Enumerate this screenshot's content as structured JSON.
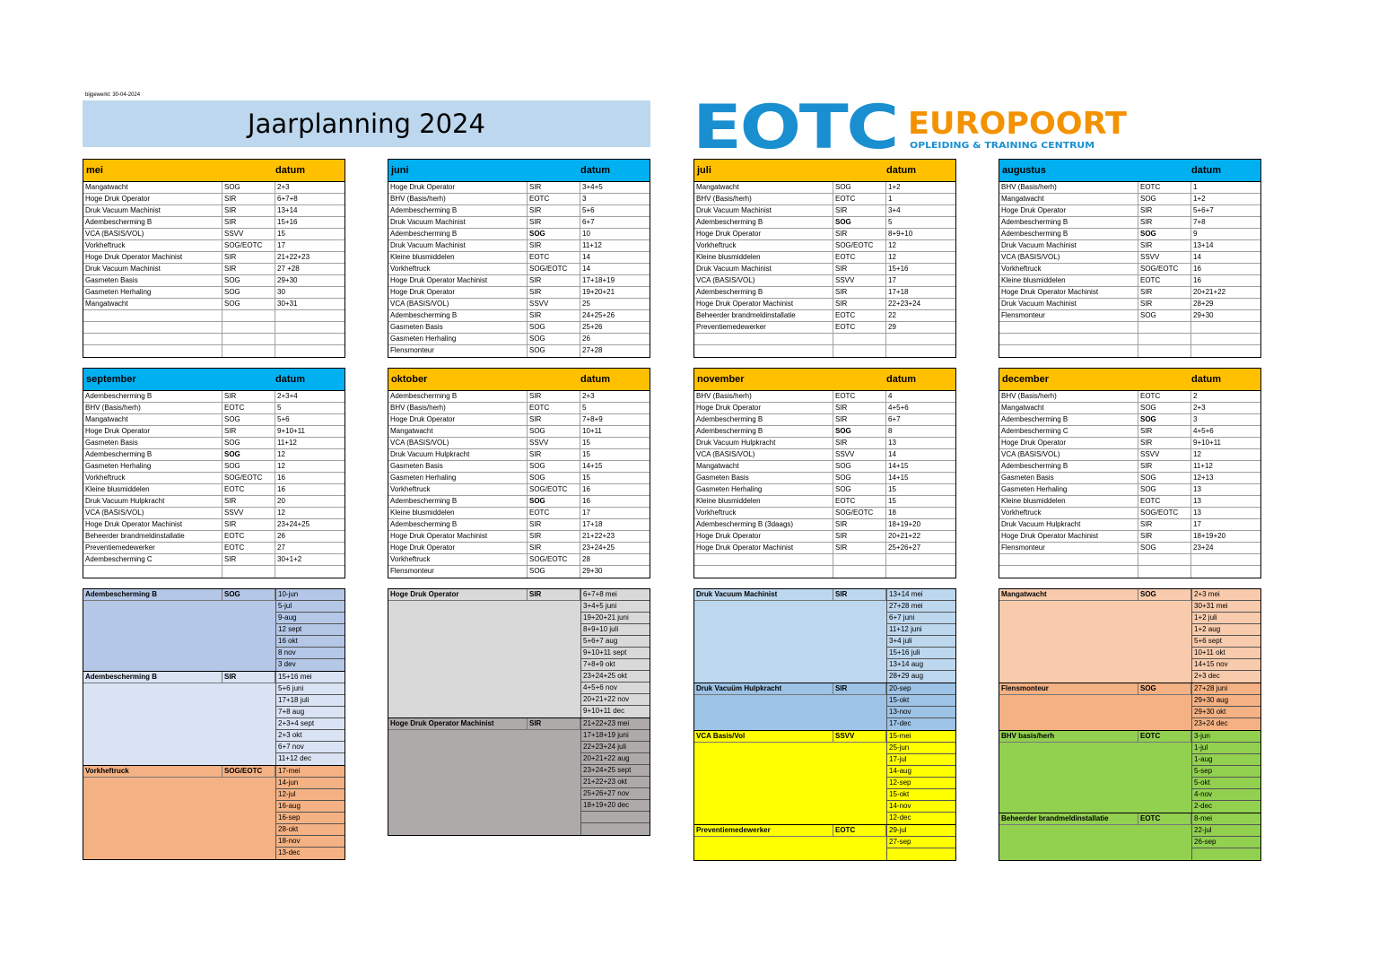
{
  "updated": "bijgewerkt: 30-04-2024",
  "title": "Jaarplanning 2024",
  "logo": {
    "mark": "EOTC",
    "name": "EUROPOORT",
    "tagline": "OPLEIDING & TRAINING CENTRUM",
    "colors": {
      "blue": "#1a8fd0",
      "orange": "#f39200"
    }
  },
  "datum_label": "datum",
  "months": [
    {
      "name": "mei",
      "rows": [
        [
          "Mangatwacht",
          "SOG",
          "2+3"
        ],
        [
          "Hoge Druk Operator",
          "SIR",
          "6+7+8"
        ],
        [
          "Druk Vacuum Machinist",
          "SIR",
          "13+14"
        ],
        [
          "Adembescherming B",
          "SIR",
          "15+16"
        ],
        [
          "VCA (BASIS/VOL)",
          "SSVV",
          "15"
        ],
        [
          "Vorkheftruck",
          "SOG/EOTC",
          "17"
        ],
        [
          "Hoge Druk Operator Machinist",
          "SIR",
          "21+22+23"
        ],
        [
          "Druk Vacuum Machinist",
          "SIR",
          "27 +28"
        ],
        [
          "Gasmeten Basis",
          "SOG",
          "29+30"
        ],
        [
          "Gasmeten Herhaling",
          "SOG",
          "30"
        ],
        [
          "Mangatwacht",
          "SOG",
          "30+31"
        ],
        [
          "",
          "",
          ""
        ],
        [
          "",
          "",
          ""
        ],
        [
          "",
          "",
          ""
        ],
        [
          "",
          "",
          ""
        ]
      ]
    },
    {
      "name": "juni",
      "rows": [
        [
          "Hoge Druk Operator",
          "SIR",
          "3+4+5"
        ],
        [
          "BHV (Basis/herh)",
          "EOTC",
          "3"
        ],
        [
          "Adembescherming B",
          "SIR",
          "5+6"
        ],
        [
          "Druk Vacuum Machinist",
          "SIR",
          "6+7"
        ],
        [
          "Adembescherming B",
          "SOG",
          "10"
        ],
        [
          "Druk Vacuum Machinist",
          "SIR",
          "11+12"
        ],
        [
          "Kleine blusmiddelen",
          "EOTC",
          "14"
        ],
        [
          "Vorkheftruck",
          "SOG/EOTC",
          "14"
        ],
        [
          "Hoge Druk Operator Machinist",
          "SIR",
          "17+18+19"
        ],
        [
          "Hoge Druk Operator",
          "SIR",
          "19+20+21"
        ],
        [
          "VCA (BASIS/VOL)",
          "SSVV",
          "25"
        ],
        [
          "Adembescherming B",
          "SIR",
          "24+25+26"
        ],
        [
          "Gasmeten Basis",
          "SOG",
          "25+26"
        ],
        [
          "Gasmeten Herhaling",
          "SOG",
          "26"
        ],
        [
          "Flensmonteur",
          "SOG",
          "27+28"
        ]
      ]
    },
    {
      "name": "juli",
      "rows": [
        [
          "Mangatwacht",
          "SOG",
          "1+2"
        ],
        [
          "BHV (Basis/herh)",
          "EOTC",
          "1"
        ],
        [
          "Druk Vacuum Machinist",
          "SIR",
          "3+4"
        ],
        [
          "Adembescherming B",
          "SOG",
          "5"
        ],
        [
          "Hoge Druk Operator",
          "SIR",
          "8+9+10"
        ],
        [
          "Vorkheftruck",
          "SOG/EOTC",
          "12"
        ],
        [
          "Kleine blusmiddelen",
          "EOTC",
          "12"
        ],
        [
          "Druk Vacuum Machinist",
          "SIR",
          "15+16"
        ],
        [
          "VCA (BASIS/VOL)",
          "SSVV",
          "17"
        ],
        [
          "Adembescherming B",
          "SIR",
          "17+18"
        ],
        [
          "Hoge Druk Operator Machinist",
          "SIR",
          "22+23+24"
        ],
        [
          "Beheerder brandmeldinstallatie",
          "EOTC",
          "22"
        ],
        [
          "Preventiemedewerker",
          "EOTC",
          "29"
        ],
        [
          "",
          "",
          ""
        ],
        [
          "",
          "",
          ""
        ]
      ]
    },
    {
      "name": "augustus",
      "rows": [
        [
          "BHV (Basis/herh)",
          "EOTC",
          "1"
        ],
        [
          "Mangatwacht",
          "SOG",
          "1+2"
        ],
        [
          "Hoge Druk Operator",
          "SIR",
          "5+6+7"
        ],
        [
          "Adembescherming B",
          "SIR",
          "7+8"
        ],
        [
          "Adembescherming B",
          "SOG",
          "9"
        ],
        [
          "Druk Vacuum Machinist",
          "SIR",
          "13+14"
        ],
        [
          "VCA (BASIS/VOL)",
          "SSVV",
          "14"
        ],
        [
          "Vorkheftruck",
          "SOG/EOTC",
          "16"
        ],
        [
          "Kleine blusmiddelen",
          "EOTC",
          "16"
        ],
        [
          "Hoge Druk Operator Machinist",
          "SIR",
          "20+21+22"
        ],
        [
          "Druk Vacuum Machinist",
          "SIR",
          "28+29"
        ],
        [
          "Flensmonteur",
          "SOG",
          "29+30"
        ],
        [
          "",
          "",
          ""
        ],
        [
          "",
          "",
          ""
        ],
        [
          "",
          "",
          ""
        ]
      ]
    },
    {
      "name": "september",
      "rows": [
        [
          "Adembescherming B",
          "SIR",
          "2+3+4"
        ],
        [
          "BHV (Basis/herh)",
          "EOTC",
          "5"
        ],
        [
          "Mangatwacht",
          "SOG",
          "5+6"
        ],
        [
          "Hoge Druk Operator",
          "SIR",
          "9+10+11"
        ],
        [
          "Gasmeten Basis",
          "SOG",
          "11+12"
        ],
        [
          "Adembescherming B",
          "SOG",
          "12"
        ],
        [
          "Gasmeten Herhaling",
          "SOG",
          "12"
        ],
        [
          "Vorkheftruck",
          "SOG/EOTC",
          "16"
        ],
        [
          "Kleine blusmiddelen",
          "EOTC",
          "16"
        ],
        [
          "Druk Vacuum Hulpkracht",
          "SIR",
          "20"
        ],
        [
          "VCA (BASIS/VOL)",
          "SSVV",
          "12"
        ],
        [
          "Hoge Druk Operator Machinist",
          "SIR",
          "23+24+25"
        ],
        [
          "Beheerder brandmeldinstallatie",
          "EOTC",
          "26"
        ],
        [
          "Preventiemedewerker",
          "EOTC",
          "27"
        ],
        [
          "Adembescherming C",
          "SIR",
          "30+1+2"
        ],
        [
          "",
          "",
          ""
        ]
      ]
    },
    {
      "name": "oktober",
      "rows": [
        [
          "Adembescherming B",
          "SIR",
          "2+3"
        ],
        [
          "BHV (Basis/herh)",
          "EOTC",
          "5"
        ],
        [
          "Hoge Druk Operator",
          "SIR",
          "7+8+9"
        ],
        [
          "Mangatwacht",
          "SOG",
          "10+11"
        ],
        [
          "VCA (BASIS/VOL)",
          "SSVV",
          "15"
        ],
        [
          "Druk Vacuum Hulpkracht",
          "SIR",
          "15"
        ],
        [
          "Gasmeten Basis",
          "SOG",
          "14+15"
        ],
        [
          "Gasmeten Herhaling",
          "SOG",
          "15"
        ],
        [
          "Vorkheftruck",
          "SOG/EOTC",
          "16"
        ],
        [
          "Adembescherming B",
          "SOG",
          "16"
        ],
        [
          "Kleine blusmiddelen",
          "EOTC",
          "17"
        ],
        [
          "Adembescherming B",
          "SIR",
          "17+18"
        ],
        [
          "Hoge Druk Operator Machinist",
          "SIR",
          "21+22+23"
        ],
        [
          "Hoge Druk Operator",
          "SIR",
          "23+24+25"
        ],
        [
          "Vorkheftruck",
          "SOG/EOTC",
          "28"
        ],
        [
          "Flensmonteur",
          "SOG",
          "29+30"
        ]
      ]
    },
    {
      "name": "november",
      "rows": [
        [
          "BHV (Basis/herh)",
          "EOTC",
          "4"
        ],
        [
          "Hoge Druk Operator",
          "SIR",
          "4+5+6"
        ],
        [
          "Adembescherming B",
          "SIR",
          "6+7"
        ],
        [
          "Adembescherming B",
          "SOG",
          "8"
        ],
        [
          "Druk Vacuum Hulpkracht",
          "SIR",
          "13"
        ],
        [
          "VCA (BASIS/VOL)",
          "SSVV",
          "14"
        ],
        [
          "Mangatwacht",
          "SOG",
          "14+15"
        ],
        [
          "Gasmeten Basis",
          "SOG",
          "14+15"
        ],
        [
          "Gasmeten Herhaling",
          "SOG",
          "15"
        ],
        [
          "Kleine blusmiddelen",
          "EOTC",
          "15"
        ],
        [
          "Vorkheftruck",
          "SOG/EOTC",
          "18"
        ],
        [
          "Adembescherming B (3daags)",
          "SIR",
          "18+19+20"
        ],
        [
          "Hoge Druk Operator",
          "SIR",
          "20+21+22"
        ],
        [
          "Hoge Druk Operator Machinist",
          "SIR",
          "25+26+27"
        ],
        [
          "",
          "",
          ""
        ],
        [
          "",
          "",
          ""
        ]
      ]
    },
    {
      "name": "december",
      "rows": [
        [
          "BHV (Basis/herh)",
          "EOTC",
          "2"
        ],
        [
          "Mangatwacht",
          "SOG",
          "2+3"
        ],
        [
          "Adembescherming B",
          "SOG",
          "3"
        ],
        [
          "Adembescherming C",
          "SIR",
          "4+5+6"
        ],
        [
          "Hoge Druk Operator",
          "SIR",
          "9+10+11"
        ],
        [
          "VCA (BASIS/VOL)",
          "SSVV",
          "12"
        ],
        [
          "Adembescherming B",
          "SIR",
          "11+12"
        ],
        [
          "Gasmeten Basis",
          "SOG",
          "12+13"
        ],
        [
          "Gasmeten Herhaling",
          "SOG",
          "13"
        ],
        [
          "Kleine blusmiddelen",
          "EOTC",
          "13"
        ],
        [
          "Vorkheftruck",
          "SOG/EOTC",
          "13"
        ],
        [
          "Druk Vacuum Hulpkracht",
          "SIR",
          "17"
        ],
        [
          "Hoge Druk Operator Machinist",
          "SIR",
          "18+19+20"
        ],
        [
          "Flensmonteur",
          "SOG",
          "23+24"
        ],
        [
          "",
          "",
          ""
        ],
        [
          "",
          "",
          ""
        ]
      ]
    }
  ],
  "columns": [
    [
      {
        "name": "Adembescherming B",
        "provider": "SOG",
        "color": "#b4c7e7",
        "dates": [
          "10-jun",
          "5-jul",
          "9-aug",
          "12 sept",
          "16 okt",
          "8 nov",
          "3 dev"
        ]
      },
      {
        "name": "Adembescherming B",
        "provider": "SIR",
        "color": "#dae3f3",
        "dates": [
          "15+16 mei",
          "5+6 juni",
          "17+18 juli",
          "7+8 aug",
          "2+3+4 sept",
          "2+3 okt",
          "6+7 nov",
          "11+12 dec"
        ]
      },
      {
        "name": "Vorkheftruck",
        "provider": "SOG/EOTC",
        "color": "#f4b183",
        "dates": [
          "17-mei",
          "14-jun",
          "12-jul",
          "16-aug",
          "16-sep",
          "28-okt",
          "18-nov",
          "13-dec"
        ]
      }
    ],
    [
      {
        "name": "Hoge Druk Operator",
        "provider": "SIR",
        "color": "#d9d9d9",
        "dates": [
          "6+7+8 mei",
          "3+4+5 juni",
          "19+20+21 juni",
          "8+9+10 juli",
          "5+6+7 aug",
          "9+10+11 sept",
          "7+8+9 okt",
          "23+24+25 okt",
          "4+5+6 nov",
          "20+21+22 nov",
          "9+10+11 dec"
        ]
      },
      {
        "name": "Hoge Druk Operator Machinist",
        "provider": "SIR",
        "color": "#aeaaaa",
        "dates": [
          "21+22+23 mei",
          "17+18+19 juni",
          "22+23+24 juli",
          "20+21+22 aug",
          "23+24+25 sept",
          "21+22+23 okt",
          "25+26+27 nov",
          "18+19+20 dec",
          "",
          ""
        ]
      }
    ],
    [
      {
        "name": "Druk Vacuum Machinist",
        "provider": "SIR",
        "color": "#bdd7ee",
        "dates": [
          "13+14 mei",
          "27+28 mei",
          "6+7 juni",
          "11+12 juni",
          "3+4 juli",
          "15+16 juli",
          "13+14 aug",
          "28+29 aug"
        ]
      },
      {
        "name": "Druk Vacuüm Hulpkracht",
        "provider": "SIR",
        "color": "#9dc3e6",
        "dates": [
          "20-sep",
          "15-okt",
          "13-nov",
          "17-dec"
        ]
      },
      {
        "name": "VCA Basis/Vol",
        "provider": "SSVV",
        "color": "#ffff00",
        "dates": [
          "15-mei",
          "25-jun",
          "17-jul",
          "14-aug",
          "12-sep",
          "15-okt",
          "14-nov",
          "12-dec"
        ]
      },
      {
        "name": "Preventiemedewerker",
        "provider": "EOTC",
        "color": "#ffff00",
        "dates": [
          "29-jul",
          "27-sep",
          ""
        ]
      }
    ],
    [
      {
        "name": "Mangatwacht",
        "provider": "SOG",
        "color": "#f8cbad",
        "dates": [
          "2+3 mei",
          "30+31 mei",
          "1+2 juli",
          "1+2 aug",
          "5+6 sept",
          "10+11 okt",
          "14+15 nov",
          "2+3 dec"
        ]
      },
      {
        "name": "Flensmonteur",
        "provider": "SOG",
        "color": "#f4b183",
        "dates": [
          "27+28 juni",
          "29+30 aug",
          "29+30 okt",
          "23+24  dec"
        ]
      },
      {
        "name": "BHV basis/herh",
        "provider": "EOTC",
        "color": "#92d050",
        "dates": [
          "3-jun",
          "1-jul",
          "1-aug",
          "5-sep",
          "5-okt",
          "4-nov",
          "2-dec"
        ]
      },
      {
        "name": "Beheerder brandmeldinstallatie",
        "provider": "EOTC",
        "color": "#92d050",
        "dates": [
          "8-mei",
          "22-jul",
          "26-sep",
          ""
        ]
      }
    ]
  ]
}
